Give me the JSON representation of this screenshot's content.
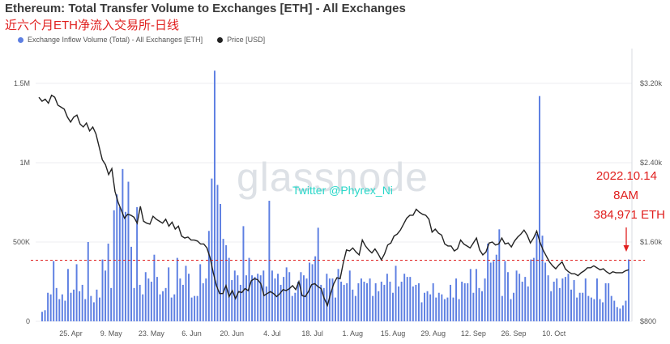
{
  "title": "Ethereum: Total Transfer Volume to Exchanges [ETH] - All Exchanges",
  "subtitle": "近六个月ETH净流入交易所-日线",
  "legend": {
    "inflow": "Exchange Inflow Volume (Total) - All Exchanges [ETH]",
    "price": "Price [USD]"
  },
  "watermark": "glassnode",
  "twitter": "Twitter @Phyrex_Ni",
  "annotation": {
    "line1": "2022.10.14",
    "line2": "8AM",
    "line3": "384,971 ETH"
  },
  "colors": {
    "bars": "#5d7fe2",
    "price": "#222222",
    "refline": "#e0201f",
    "annotation": "#e0201f"
  },
  "chart_data": {
    "type": "bar",
    "x_tick_labels": [
      "25. Apr",
      "9. May",
      "23. May",
      "6. Jun",
      "20. Jun",
      "4. Jul",
      "18. Jul",
      "1. Aug",
      "15. Aug",
      "29. Aug",
      "12. Sep",
      "26. Sep",
      "10. Oct"
    ],
    "y_left_ticks": [
      "0",
      "500K",
      "1M",
      "1.5M"
    ],
    "y_left_range": [
      0,
      1600000
    ],
    "y_right_ticks": [
      "$800",
      "$1.60k",
      "$2.40k",
      "$3.20k"
    ],
    "y_right_range": [
      800,
      3200
    ],
    "reference_line_value": 384971,
    "start_date": "2022-04-15",
    "series": [
      {
        "name": "Exchange Inflow Volume (Total) - All Exchanges [ETH]",
        "type": "bar",
        "values": [
          60000,
          70000,
          180000,
          170000,
          380000,
          210000,
          140000,
          170000,
          130000,
          330000,
          180000,
          200000,
          360000,
          190000,
          230000,
          140000,
          500000,
          160000,
          120000,
          200000,
          150000,
          390000,
          320000,
          490000,
          210000,
          700000,
          800000,
          720000,
          960000,
          690000,
          880000,
          470000,
          210000,
          720000,
          230000,
          170000,
          310000,
          270000,
          250000,
          420000,
          280000,
          170000,
          190000,
          210000,
          340000,
          150000,
          170000,
          400000,
          270000,
          230000,
          350000,
          300000,
          150000,
          160000,
          160000,
          360000,
          240000,
          270000,
          570000,
          900000,
          1580000,
          860000,
          740000,
          520000,
          480000,
          400000,
          260000,
          320000,
          290000,
          230000,
          600000,
          290000,
          400000,
          290000,
          280000,
          300000,
          290000,
          320000,
          220000,
          760000,
          320000,
          270000,
          300000,
          230000,
          280000,
          340000,
          310000,
          160000,
          180000,
          250000,
          310000,
          290000,
          270000,
          370000,
          360000,
          410000,
          590000,
          230000,
          210000,
          300000,
          270000,
          270000,
          150000,
          330000,
          250000,
          230000,
          240000,
          320000,
          200000,
          160000,
          240000,
          270000,
          250000,
          240000,
          270000,
          160000,
          240000,
          190000,
          250000,
          230000,
          300000,
          250000,
          180000,
          350000,
          220000,
          250000,
          300000,
          280000,
          280000,
          220000,
          230000,
          240000,
          120000,
          180000,
          190000,
          170000,
          240000,
          150000,
          180000,
          170000,
          140000,
          150000,
          230000,
          150000,
          270000,
          140000,
          250000,
          240000,
          240000,
          330000,
          180000,
          330000,
          210000,
          190000,
          270000,
          490000,
          370000,
          380000,
          420000,
          580000,
          160000,
          380000,
          310000,
          140000,
          180000,
          320000,
          300000,
          250000,
          280000,
          220000,
          390000,
          400000,
          550000,
          1420000,
          540000,
          370000,
          290000,
          190000,
          250000,
          270000,
          210000,
          270000,
          280000,
          300000,
          200000,
          260000,
          150000,
          180000,
          180000,
          270000,
          160000,
          150000,
          140000,
          270000,
          140000,
          120000,
          240000,
          240000,
          160000,
          130000,
          90000,
          80000,
          100000,
          130000,
          390000
        ]
      },
      {
        "name": "Price [USD]",
        "type": "line",
        "axis": "right",
        "values": [
          3060,
          3020,
          3040,
          3000,
          3080,
          3060,
          2980,
          2960,
          2940,
          2860,
          2810,
          2860,
          2880,
          2790,
          2760,
          2800,
          2720,
          2760,
          2690,
          2560,
          2430,
          2380,
          2280,
          2340,
          2110,
          2000,
          1920,
          1840,
          1880,
          1870,
          1850,
          1790,
          1960,
          1810,
          1790,
          1780,
          1860,
          1830,
          1810,
          1790,
          1830,
          1760,
          1800,
          1730,
          1760,
          1660,
          1640,
          1650,
          1620,
          1620,
          1610,
          1580,
          1580,
          1540,
          1440,
          1290,
          1160,
          1080,
          1080,
          1160,
          1050,
          1110,
          1030,
          1100,
          1090,
          1130,
          1110,
          1210,
          1230,
          1220,
          1180,
          1060,
          1080,
          1100,
          1080,
          1050,
          1080,
          1120,
          1110,
          1130,
          1160,
          1120,
          1200,
          1060,
          1050,
          1100,
          1170,
          1180,
          1150,
          1130,
          1030,
          960,
          1080,
          1180,
          1240,
          1230,
          1390,
          1520,
          1510,
          1540,
          1500,
          1470,
          1620,
          1560,
          1520,
          1490,
          1530,
          1480,
          1420,
          1480,
          1570,
          1590,
          1660,
          1680,
          1720,
          1780,
          1840,
          1870,
          1870,
          1930,
          1900,
          1880,
          1870,
          1830,
          1700,
          1730,
          1690,
          1670,
          1580,
          1560,
          1560,
          1510,
          1530,
          1620,
          1580,
          1560,
          1540,
          1590,
          1640,
          1520,
          1470,
          1500,
          1590,
          1600,
          1570,
          1580,
          1640,
          1580,
          1590,
          1550,
          1610,
          1650,
          1680,
          1720,
          1670,
          1590,
          1640,
          1710,
          1600,
          1520,
          1460,
          1400,
          1360,
          1330,
          1370,
          1400,
          1330,
          1300,
          1280,
          1280,
          1260,
          1290,
          1310,
          1340,
          1340,
          1360,
          1340,
          1320,
          1330,
          1300,
          1280,
          1300,
          1290,
          1290,
          1290,
          1310,
          1320
        ]
      }
    ]
  }
}
